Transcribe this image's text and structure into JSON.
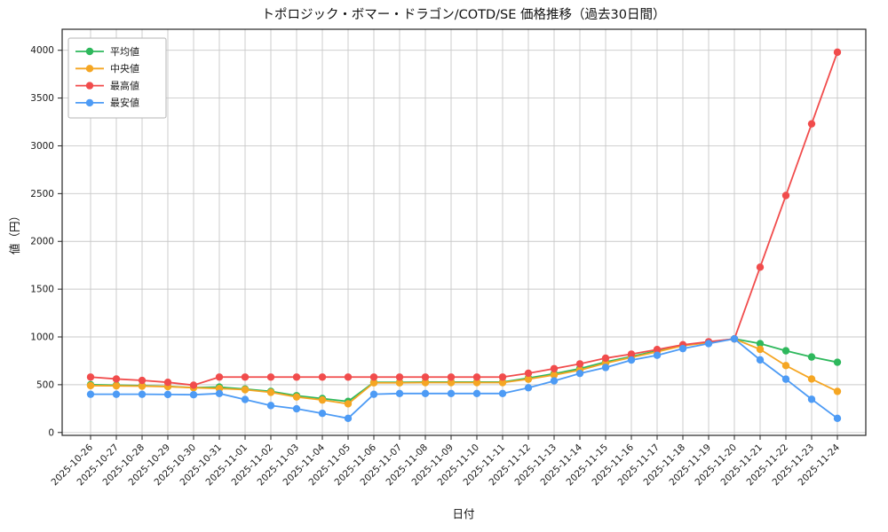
{
  "chart_data": {
    "type": "line",
    "title": "トポロジック・ボマー・ドラゴン/COTD/SE 価格推移（過去30日間）",
    "xlabel": "日付",
    "ylabel": "値（円）",
    "grid": true,
    "legend_position": "upper left",
    "ylim": [
      0,
      4000
    ],
    "yticks": [
      0,
      500,
      1000,
      1500,
      2000,
      2500,
      3000,
      3500,
      4000
    ],
    "categories": [
      "2025-10-26",
      "2025-10-27",
      "2025-10-28",
      "2025-10-29",
      "2025-10-30",
      "2025-10-31",
      "2025-11-01",
      "2025-11-02",
      "2025-11-03",
      "2025-11-04",
      "2025-11-05",
      "2025-11-06",
      "2025-11-07",
      "2025-11-08",
      "2025-11-09",
      "2025-11-10",
      "2025-11-11",
      "2025-11-12",
      "2025-11-13",
      "2025-11-14",
      "2025-11-15",
      "2025-11-16",
      "2025-11-17",
      "2025-11-18",
      "2025-11-19",
      "2025-11-20",
      "2025-11-21",
      "2025-11-22",
      "2025-11-23",
      "2025-11-24"
    ],
    "series": [
      {
        "key": "average",
        "name": "平均値",
        "color": "#2eb85c",
        "values": [
          500,
          495,
          490,
          482,
          470,
          475,
          455,
          430,
          385,
          355,
          325,
          525,
          525,
          528,
          528,
          528,
          528,
          570,
          615,
          668,
          738,
          795,
          855,
          915,
          945,
          980,
          930,
          855,
          790,
          735
        ]
      },
      {
        "key": "median",
        "name": "中央値",
        "color": "#f5a623",
        "values": [
          490,
          488,
          485,
          480,
          468,
          460,
          448,
          420,
          372,
          340,
          300,
          520,
          520,
          522,
          522,
          522,
          522,
          558,
          602,
          652,
          725,
          785,
          845,
          908,
          940,
          980,
          870,
          700,
          560,
          430
        ]
      },
      {
        "key": "max",
        "name": "最高値",
        "color": "#f14c4c",
        "values": [
          580,
          560,
          545,
          525,
          495,
          580,
          580,
          580,
          580,
          580,
          580,
          580,
          580,
          580,
          580,
          580,
          580,
          620,
          668,
          718,
          778,
          820,
          868,
          918,
          950,
          980,
          1730,
          2480,
          3230,
          3980
        ]
      },
      {
        "key": "min",
        "name": "最安値",
        "color": "#4d9bf5",
        "values": [
          400,
          400,
          400,
          398,
          395,
          408,
          345,
          282,
          248,
          200,
          148,
          400,
          408,
          408,
          408,
          408,
          408,
          468,
          540,
          618,
          680,
          758,
          808,
          878,
          930,
          980,
          760,
          558,
          348,
          148
        ]
      }
    ]
  }
}
